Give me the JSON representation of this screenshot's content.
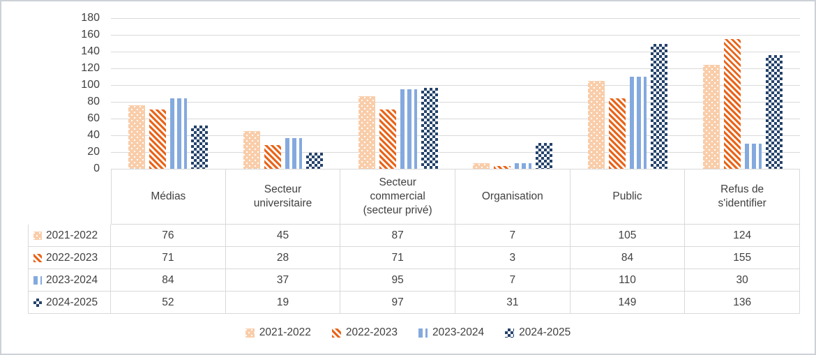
{
  "chart_data": {
    "type": "bar",
    "title": "",
    "xlabel": "",
    "ylabel": "",
    "ylim": [
      0,
      180
    ],
    "ytick_step": 20,
    "grid": true,
    "legend_position": "bottom",
    "has_data_table": true,
    "categories": [
      "Médias",
      "Secteur universitaire",
      "Secteur commercial (secteur privé)",
      "Organisation",
      "Public",
      "Refus de s'identifier"
    ],
    "series": [
      {
        "name": "2021-2022",
        "values": [
          76,
          45,
          87,
          7,
          105,
          124
        ],
        "color": "#F9CDA9",
        "pattern": "dotted"
      },
      {
        "name": "2022-2023",
        "values": [
          71,
          28,
          71,
          3,
          84,
          155
        ],
        "color": "#EA6318",
        "pattern": "diagonal-stripes"
      },
      {
        "name": "2023-2024",
        "values": [
          84,
          37,
          95,
          7,
          110,
          30
        ],
        "color": "#84A9DE",
        "pattern": "vertical-stripes"
      },
      {
        "name": "2024-2025",
        "values": [
          52,
          19,
          97,
          31,
          149,
          136
        ],
        "color": "#24426B",
        "pattern": "checkerboard"
      }
    ]
  },
  "colors": {
    "text": "#404040",
    "gridline": "#D9D9D9",
    "table_border": "#D9D9D9",
    "frame_border": "#CDD1D7"
  }
}
